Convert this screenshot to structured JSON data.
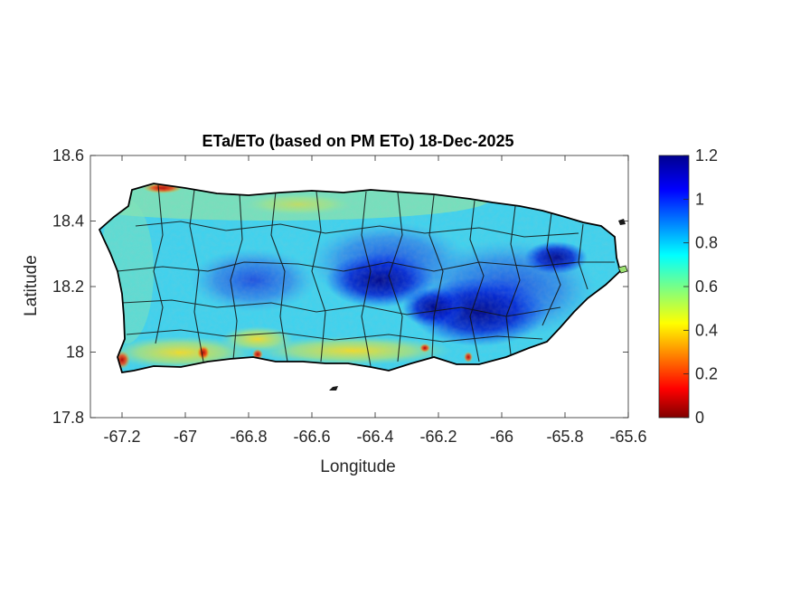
{
  "chart_data": {
    "type": "heatmap",
    "title": "ETa/ETo (based on PM ETo) 18-Dec-2025",
    "xlabel": "Longitude",
    "ylabel": "Latitude",
    "xlim": [
      -67.3,
      -65.6
    ],
    "ylim": [
      17.8,
      18.6
    ],
    "x_ticks": [
      -67.2,
      -67,
      -66.8,
      -66.6,
      -66.4,
      -66.2,
      -66,
      -65.8,
      -65.6
    ],
    "y_ticks": [
      17.8,
      18,
      18.2,
      18.4,
      18.6
    ],
    "x_tick_labels": [
      "-67.2",
      "-67",
      "-66.8",
      "-66.6",
      "-66.4",
      "-66.2",
      "-66",
      "-65.8",
      "-65.6"
    ],
    "y_tick_labels": [
      "17.8",
      "18",
      "18.2",
      "18.4",
      "18.6"
    ],
    "colorbar": {
      "colormap": "jet",
      "clim": [
        0,
        1.2
      ],
      "ticks": [
        0,
        0.2,
        0.4,
        0.6,
        0.8,
        1,
        1.2
      ],
      "tick_labels": [
        "0",
        "0.2",
        "0.4",
        "0.6",
        "0.8",
        "1",
        "1.2"
      ]
    },
    "grid": false,
    "regions": [
      {
        "area": "east-central interior",
        "value_range": [
          1.0,
          1.2
        ]
      },
      {
        "area": "northeast (near -65.8)",
        "value_range": [
          1.0,
          1.1
        ]
      },
      {
        "area": "central-west interior",
        "value_range": [
          0.8,
          0.95
        ]
      },
      {
        "area": "north and west coasts",
        "value_range": [
          0.6,
          0.8
        ]
      },
      {
        "area": "south coast",
        "value_range": [
          0.3,
          0.6
        ]
      },
      {
        "area": "southwest corner and isolated spots",
        "value_range": [
          0.0,
          0.2
        ]
      }
    ]
  }
}
